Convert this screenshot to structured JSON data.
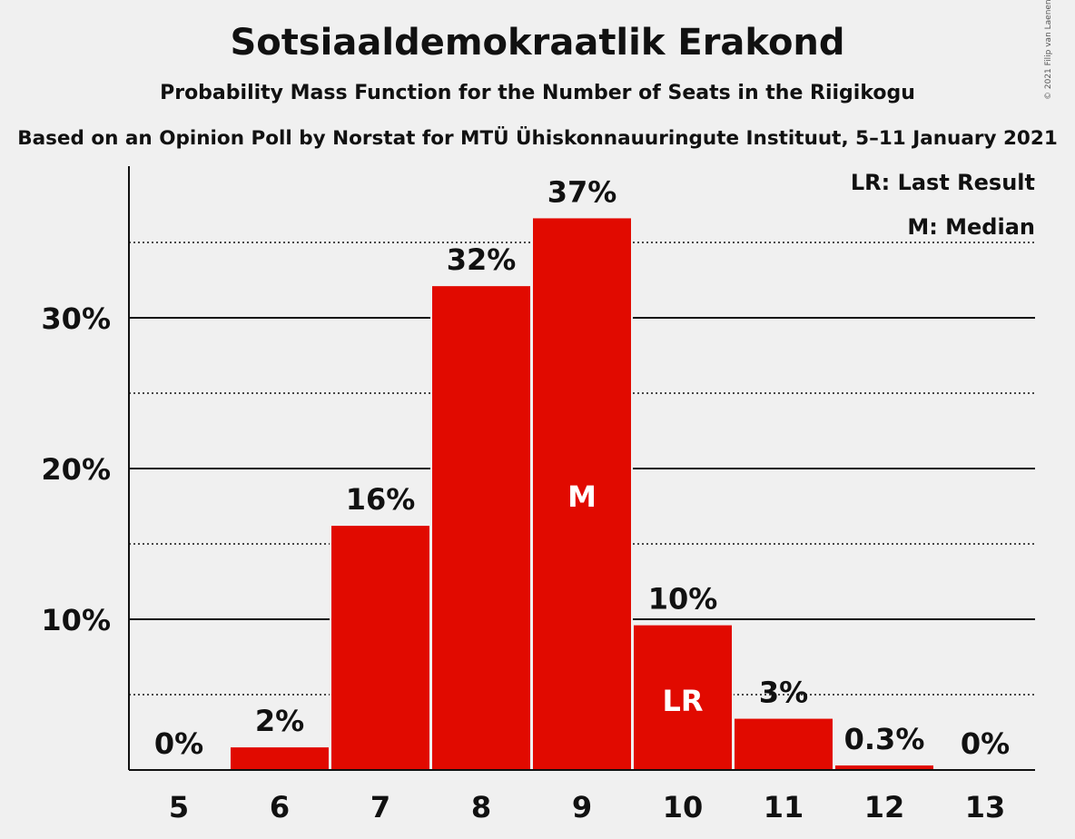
{
  "header": {
    "title": "Sotsiaaldemokraatlik Erakond",
    "subtitle": "Probability Mass Function for the Number of Seats in the Riigikogu",
    "source": "Based on an Opinion Poll by Norstat for MTÜ Ühiskonnauuringute Instituut, 5–11 January 2021",
    "copyright": "© 2021 Filip van Laenen"
  },
  "legend": {
    "lr": "LR: Last Result",
    "m": "M: Median"
  },
  "chart_data": {
    "type": "bar",
    "title": "Sotsiaaldemokraatlik Erakond",
    "categories": [
      "5",
      "6",
      "7",
      "8",
      "9",
      "10",
      "11",
      "12",
      "13"
    ],
    "values": [
      0,
      1.5,
      16.2,
      32.1,
      36.6,
      9.6,
      3.4,
      0.3,
      0
    ],
    "data_labels": [
      "0%",
      "2%",
      "16%",
      "32%",
      "37%",
      "10%",
      "3%",
      "0.3%",
      "0%"
    ],
    "bar_markers": {
      "9": "M",
      "10": "LR"
    },
    "yticks": [
      10,
      20,
      30
    ],
    "ytick_labels": [
      "10%",
      "20%",
      "30%"
    ],
    "minor_gridlines": [
      5,
      15,
      25,
      35
    ],
    "ylim": [
      0,
      40
    ],
    "bar_color": "#e10a00",
    "legend_position": "top-right",
    "grid": true
  }
}
